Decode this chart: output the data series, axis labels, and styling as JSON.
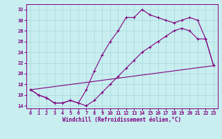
{
  "xlabel": "Windchill (Refroidissement éolien,°C)",
  "bg_color": "#c8eef0",
  "line_color": "#800080",
  "grid_color": "#aadddd",
  "xlim": [
    -0.5,
    23.5
  ],
  "ylim": [
    13.5,
    33
  ],
  "xticks": [
    0,
    1,
    2,
    3,
    4,
    5,
    6,
    7,
    8,
    9,
    10,
    11,
    12,
    13,
    14,
    15,
    16,
    17,
    18,
    19,
    20,
    21,
    22,
    23
  ],
  "yticks": [
    14,
    16,
    18,
    20,
    22,
    24,
    26,
    28,
    30,
    32
  ],
  "line1_x": [
    0,
    1,
    2,
    3,
    4,
    5,
    6,
    7,
    8,
    9,
    10,
    11,
    12,
    13,
    14,
    15,
    16,
    17,
    18,
    19,
    20,
    21,
    22,
    23
  ],
  "line1_y": [
    17.0,
    16.0,
    15.5,
    14.5,
    14.5,
    15.0,
    14.5,
    14.0,
    15.0,
    16.5,
    18.0,
    19.5,
    21.0,
    22.5,
    24.0,
    25.0,
    26.0,
    27.0,
    28.0,
    28.5,
    28.0,
    26.5,
    26.5,
    21.5
  ],
  "line2_x": [
    0,
    1,
    2,
    3,
    4,
    5,
    6,
    7,
    8,
    9,
    10,
    11,
    12,
    13,
    14,
    15,
    16,
    17,
    18,
    19,
    20,
    21,
    22,
    23
  ],
  "line2_y": [
    17.0,
    16.0,
    15.5,
    14.5,
    14.5,
    15.0,
    14.5,
    17.0,
    20.5,
    23.5,
    26.0,
    28.0,
    30.5,
    30.5,
    32.0,
    31.0,
    30.5,
    30.0,
    29.5,
    30.0,
    30.5,
    30.0,
    26.5,
    21.5
  ],
  "line3_x": [
    0,
    23
  ],
  "line3_y": [
    17.0,
    21.5
  ]
}
